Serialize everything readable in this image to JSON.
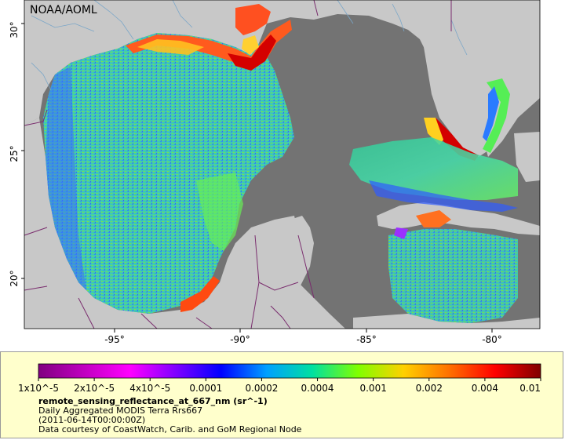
{
  "map": {
    "credit": "NOAA/AOML",
    "longitude_ticks": [
      "-95°",
      "-90°",
      "-85°",
      "-80°"
    ],
    "latitude_ticks": [
      "30°",
      "25°",
      "20°"
    ],
    "colors": {
      "land": "#c8c8c8",
      "water_no_data": "#737373",
      "borders": "#7a2d6e",
      "rivers": "#7aa6c8"
    }
  },
  "legend": {
    "scale_labels": [
      "1x10^-5",
      "2x10^-5",
      "4x10^-5",
      "0.0001",
      "0.0002",
      "0.0004",
      "0.001",
      "0.002",
      "0.004",
      "0.01"
    ],
    "scale_colors": [
      "#800080",
      "#c000c0",
      "#ff00ff",
      "#8000ff",
      "#0000ff",
      "#00a0ff",
      "#00e0a0",
      "#80ff00",
      "#ffd000",
      "#ff7000",
      "#ff0000",
      "#800000"
    ],
    "variable": "remote_sensing_reflectance_at_667_nm (sr^-1)",
    "description": "Daily Aggregated MODIS Terra Rrs667",
    "date": "(2011-06-14T00:00:00Z)",
    "courtesy": "Data courtesy of CoastWatch, Carib. and GoM Regional Node"
  }
}
